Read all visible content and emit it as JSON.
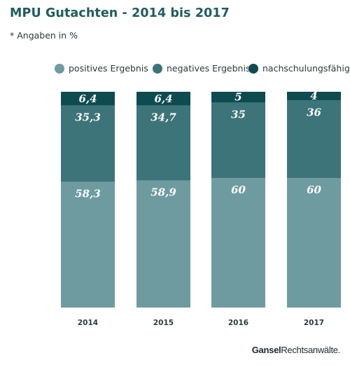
{
  "header": {
    "title": "MPU Gutachten - 2014 bis 2017",
    "subtitle": "* Angaben in %"
  },
  "footer": {
    "logo_part1": "Gansel",
    "logo_part2": "Rechtsanwälte."
  },
  "chart_data": {
    "type": "bar",
    "stacked": true,
    "categories": [
      "2014",
      "2015",
      "2016",
      "2017"
    ],
    "series": [
      {
        "name": "positives Ergebnis",
        "color": "#6e9ba0",
        "values": [
          58.3,
          58.9,
          60,
          60
        ],
        "labels": [
          "58,3",
          "58,9",
          "60",
          "60"
        ]
      },
      {
        "name": "negatives Ergebnis",
        "color": "#3c7479",
        "values": [
          35.3,
          34.7,
          35,
          36
        ],
        "labels": [
          "35,3",
          "34,7",
          "35",
          "36"
        ]
      },
      {
        "name": "nachschulungsfähig",
        "color": "#0e4b50",
        "values": [
          6.4,
          6.4,
          5,
          4
        ],
        "labels": [
          "6,4",
          "6,4",
          "5",
          "4"
        ]
      }
    ],
    "legend_position": "top-right",
    "grid": false,
    "ylim": [
      0,
      100
    ]
  }
}
